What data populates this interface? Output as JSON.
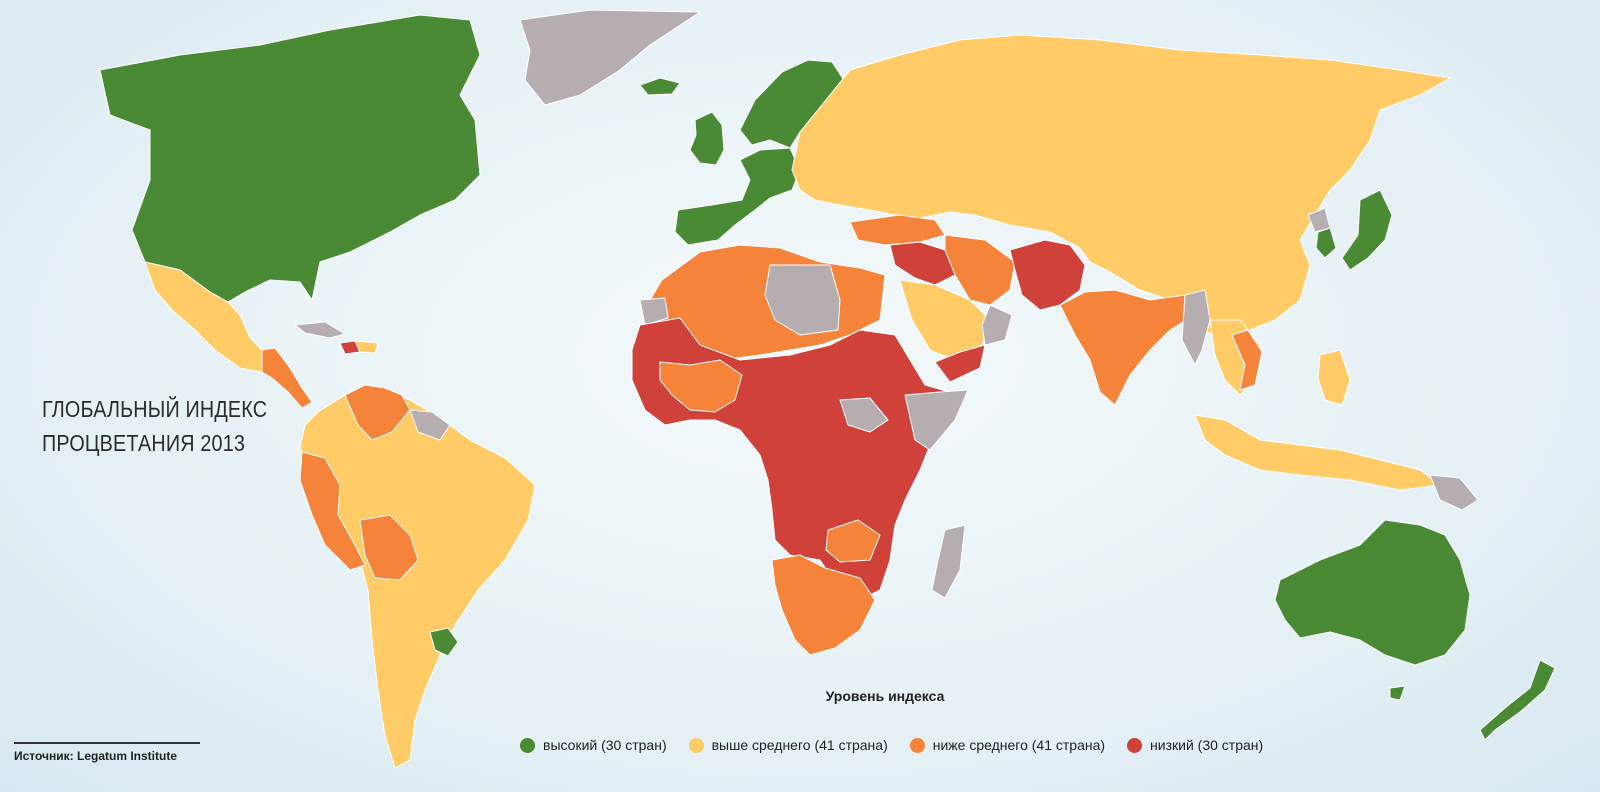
{
  "title": {
    "line1": "ГЛОБАЛЬНЫЙ ИНДЕКС",
    "line2": "ПРОЦВЕТАНИЯ 2013"
  },
  "source": {
    "label": "Источник:",
    "name": "Legatum Institute"
  },
  "legend": {
    "title": "Уровень индекса",
    "items": [
      {
        "label": "высокий (30 стран)",
        "color": "#4a8a34"
      },
      {
        "label": "выше среднего  (41 страна)",
        "color": "#ffcb66"
      },
      {
        "label": "ниже среднего (41 страна)",
        "color": "#f5843a"
      },
      {
        "label": "низкий (30 стран)",
        "color": "#d0413a"
      }
    ]
  },
  "colors": {
    "high": "#4a8a34",
    "above_average": "#ffcb66",
    "below_average": "#f5843a",
    "low": "#d0413a",
    "no_data": "#b5adaf",
    "water": "#e6f1f5"
  }
}
